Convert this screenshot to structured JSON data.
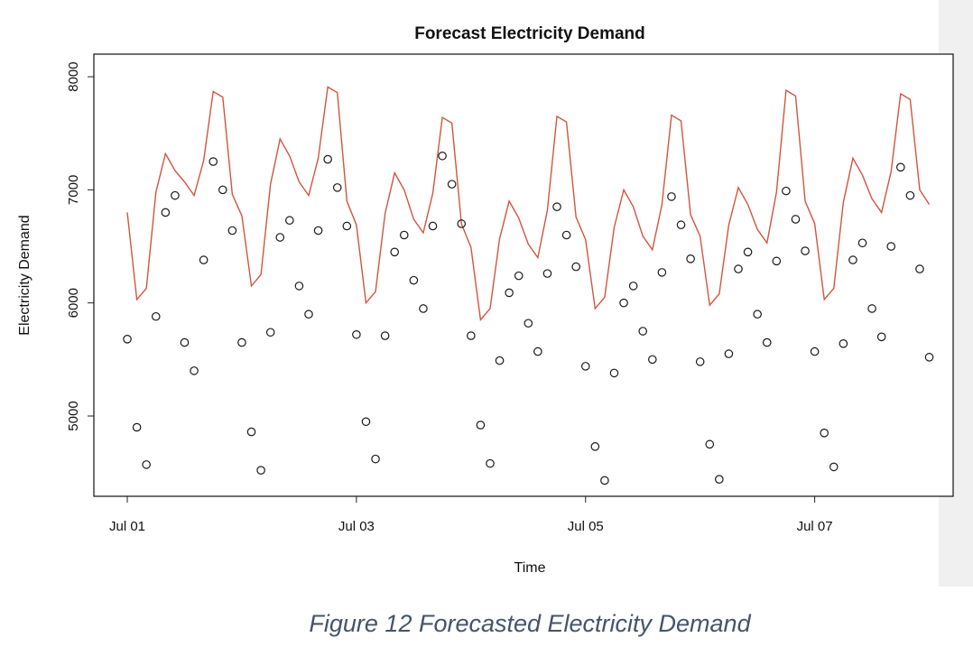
{
  "chart_data": {
    "type": "line-points",
    "title": "Forecast Electricity Demand",
    "xlabel": "Time",
    "ylabel": "Electricity Demand",
    "caption": "Figure 12 Forecasted Electricity Demand",
    "x": [
      0,
      2,
      4,
      6,
      8,
      10,
      12,
      14,
      16,
      18,
      20,
      22,
      24,
      26,
      28,
      30,
      32,
      34,
      36,
      38,
      40,
      42,
      44,
      46,
      48,
      50,
      52,
      54,
      56,
      58,
      60,
      62,
      64,
      66,
      68,
      70,
      72,
      74,
      76,
      78,
      80,
      82,
      84,
      86,
      88,
      90,
      92,
      94,
      96,
      98,
      100,
      102,
      104,
      106,
      108,
      110,
      112,
      114,
      116,
      118,
      120,
      122,
      124,
      126,
      128,
      130,
      132,
      134,
      136,
      138,
      140,
      142,
      144,
      146,
      148,
      150,
      152,
      154,
      156,
      158,
      160,
      162,
      164,
      166,
      168
    ],
    "xlim": [
      -7,
      173
    ],
    "xticks": [
      {
        "value": 0,
        "label": "Jul 01"
      },
      {
        "value": 48,
        "label": "Jul 03"
      },
      {
        "value": 96,
        "label": "Jul 05"
      },
      {
        "value": 144,
        "label": "Jul 07"
      }
    ],
    "ylim": [
      4290,
      8200
    ],
    "yticks": [
      5000,
      6000,
      7000,
      8000
    ],
    "series": [
      {
        "style": "line",
        "color": "#d2553f",
        "values": [
          6800,
          6030,
          6130,
          6980,
          7320,
          7170,
          7070,
          6950,
          7260,
          7870,
          7820,
          6960,
          6770,
          6150,
          6250,
          7050,
          7450,
          7300,
          7070,
          6950,
          7280,
          7910,
          7860,
          6900,
          6690,
          6000,
          6100,
          6790,
          7150,
          7000,
          6740,
          6620,
          6970,
          7640,
          7590,
          6700,
          6490,
          5850,
          5950,
          6570,
          6900,
          6750,
          6520,
          6400,
          6820,
          7650,
          7600,
          6760,
          6560,
          5950,
          6050,
          6670,
          7000,
          6850,
          6590,
          6470,
          6870,
          7660,
          7610,
          6780,
          6590,
          5980,
          6080,
          6690,
          7020,
          6870,
          6650,
          6530,
          6980,
          7880,
          7830,
          6900,
          6700,
          6030,
          6130,
          6890,
          7280,
          7130,
          6920,
          6800,
          7160,
          7850,
          7800,
          7000,
          6870
        ]
      },
      {
        "style": "points",
        "color": "#1a1a1a",
        "values": [
          5680,
          4900,
          4570,
          5880,
          6800,
          6950,
          5650,
          5400,
          6380,
          7250,
          7000,
          6640,
          5650,
          4860,
          4520,
          5740,
          6580,
          6730,
          6150,
          5900,
          6640,
          7270,
          7020,
          6680,
          5720,
          4950,
          4620,
          5710,
          6450,
          6600,
          6200,
          5950,
          6680,
          7300,
          7050,
          6700,
          5710,
          4920,
          4580,
          5490,
          6090,
          6240,
          5820,
          5570,
          6260,
          6850,
          6600,
          6320,
          5440,
          4730,
          4430,
          5380,
          6000,
          6150,
          5750,
          5500,
          6270,
          6940,
          6690,
          6390,
          5480,
          4750,
          4440,
          5550,
          6300,
          6450,
          5900,
          5650,
          6370,
          6990,
          6740,
          6460,
          5570,
          4850,
          4550,
          5640,
          6380,
          6530,
          5950,
          5700,
          6500,
          7200,
          6950,
          6300,
          5520
        ]
      }
    ]
  }
}
